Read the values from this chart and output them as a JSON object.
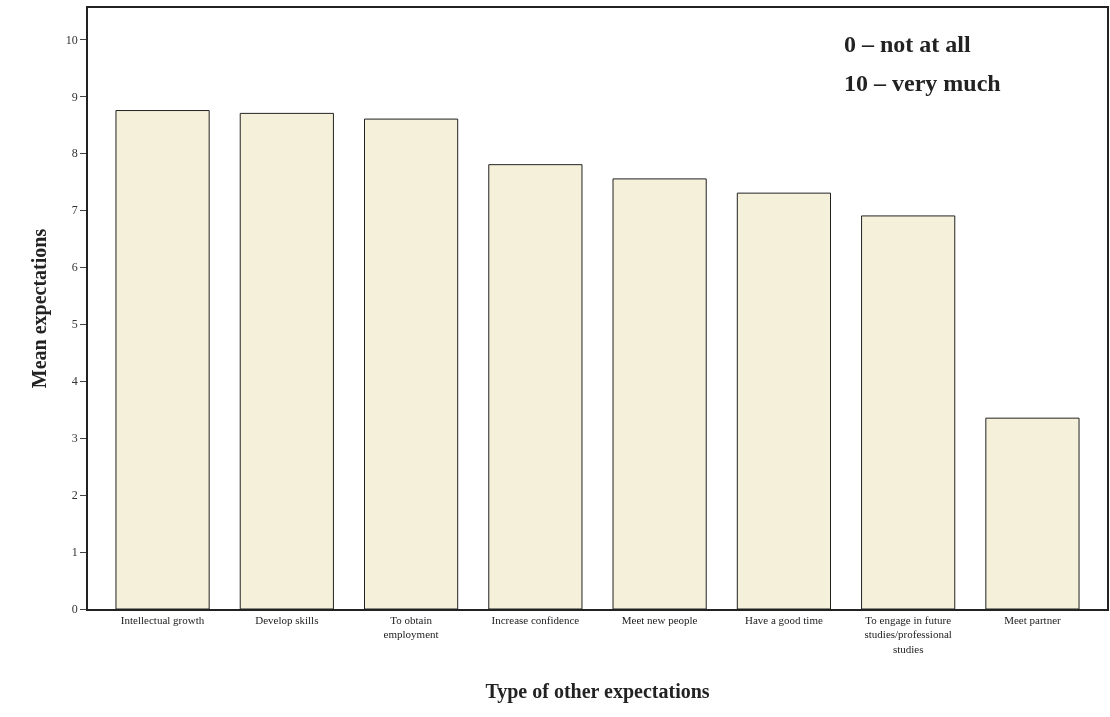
{
  "chart_data": {
    "type": "bar",
    "xlabel": "Type of other expectations",
    "ylabel": "Mean expectations",
    "categories": [
      "Intellectual growth",
      "Develop skills",
      "To obtain employment",
      "Increase confidence",
      "Meet new people",
      "Have a good time",
      "To engage in future studies/professional studies",
      "Meet partner"
    ],
    "values": [
      8.75,
      8.7,
      8.6,
      7.8,
      7.55,
      7.3,
      6.9,
      3.35
    ],
    "color": "#f5f0da",
    "ylim": [
      0,
      10.55
    ],
    "yticks": [
      0,
      1,
      2,
      3,
      4,
      5,
      6,
      7,
      8,
      9,
      10
    ],
    "grid": false,
    "annotations": [
      "0 – not at all",
      "10 – very much"
    ]
  }
}
